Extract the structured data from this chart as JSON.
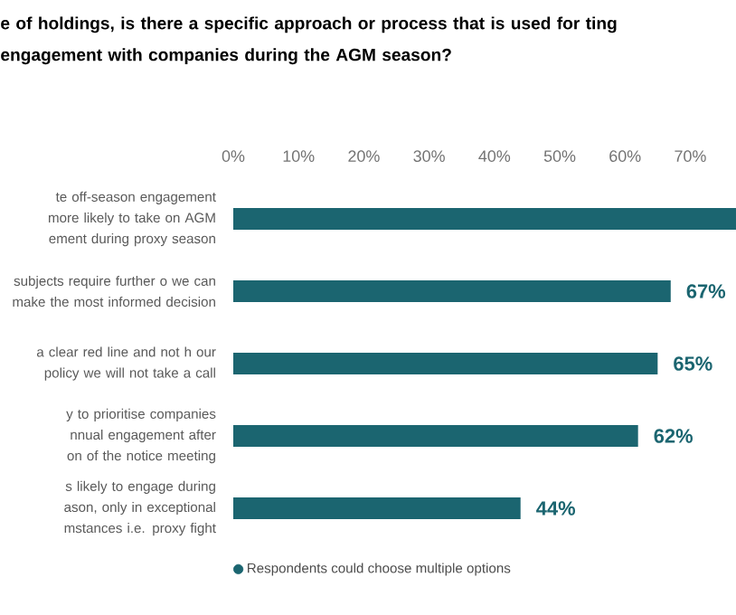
{
  "chart_data": {
    "type": "bar",
    "orientation": "horizontal",
    "title": "e of holdings, is there a specific approach or process that is used for ting engagement with companies during the AGM season?",
    "categories": [
      "te off-season engagement more likely to take on AGM ement during proxy season",
      "subjects require further o we can make the most informed decision",
      "a clear red line and not h our policy we will not take a call",
      "y to prioritise companies nnual engagement after on of the notice meeting",
      "s likely to engage during ason, only in exceptional mstances i.e. proxy fight"
    ],
    "series": [
      {
        "name": "Respondents could choose multiple options",
        "color": "#1b6570",
        "values": [
          77,
          67,
          65,
          62,
          44
        ]
      }
    ],
    "value_labels": [
      null,
      "67%",
      "65%",
      "62%",
      "44%"
    ],
    "xlim": [
      0,
      77
    ],
    "xticks": [
      {
        "value": 0,
        "label": "0%"
      },
      {
        "value": 10,
        "label": "10%"
      },
      {
        "value": 20,
        "label": "20%"
      },
      {
        "value": 30,
        "label": "30%"
      },
      {
        "value": 40,
        "label": "40%"
      },
      {
        "value": 50,
        "label": "50%"
      },
      {
        "value": 60,
        "label": "60%"
      },
      {
        "value": 70,
        "label": "70%"
      }
    ],
    "grid": false,
    "legend": "bottom"
  }
}
